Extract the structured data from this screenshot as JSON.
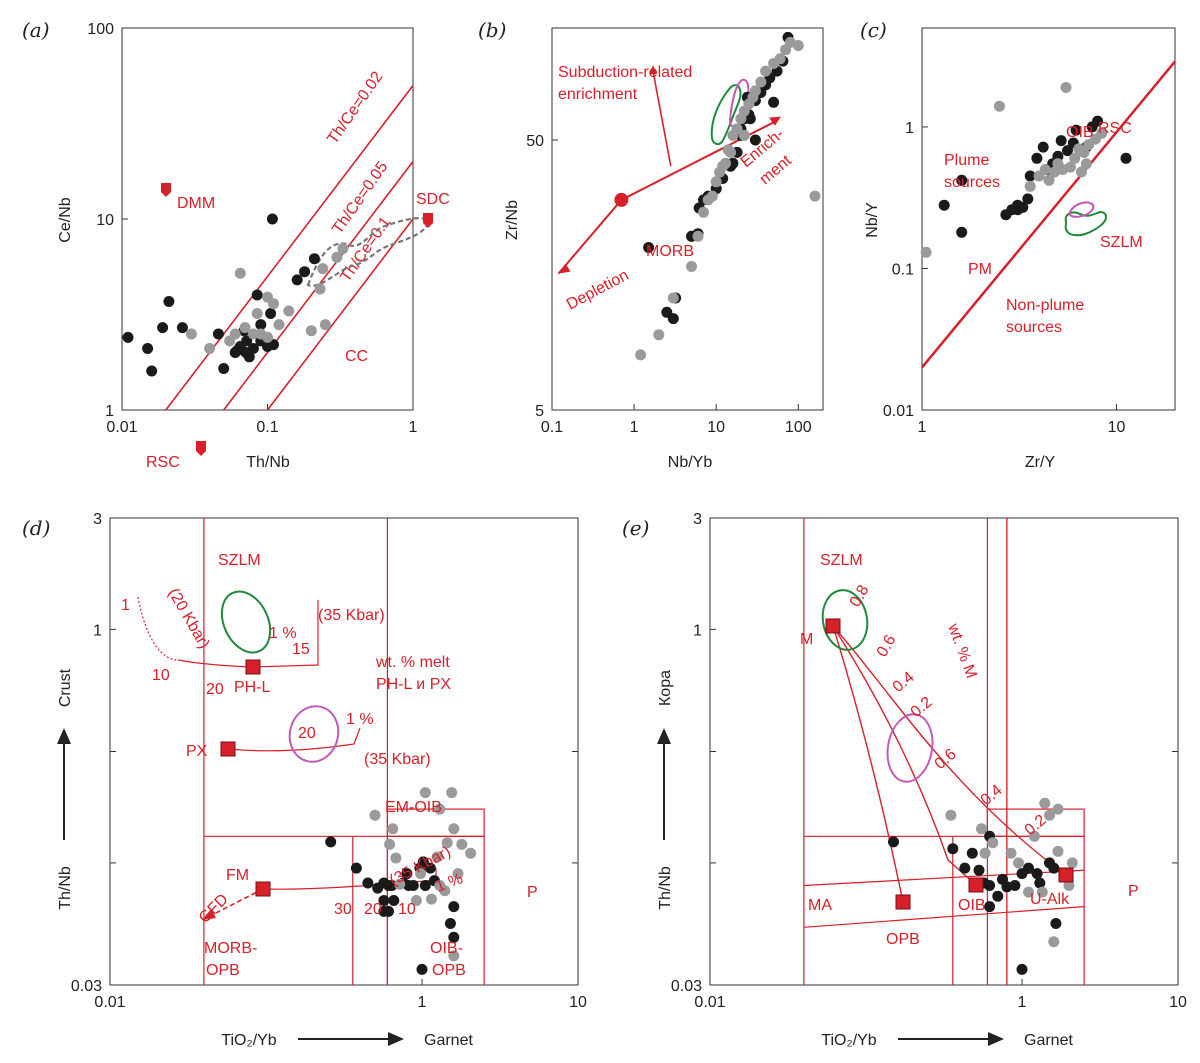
{
  "colors": {
    "red": "#d6202a",
    "black_dot": "#1a1a1a",
    "grey_dot": "#9a9a9a",
    "green": "#1f8a3a",
    "magenta": "#c25ab8",
    "dash_grey": "#777777"
  },
  "chart_data": [
    {
      "id": "a",
      "type": "scatter",
      "panel_label": "(a)",
      "xlabel": "Th/Nb",
      "ylabel": "Ce/Nb",
      "xscale": "log",
      "yscale": "log",
      "xlim": [
        0.01,
        1
      ],
      "ylim": [
        1,
        100
      ],
      "xticks": [
        "0.01",
        "0.1",
        "1"
      ],
      "yticks": [
        "1",
        "10",
        "100"
      ],
      "series": [
        {
          "color": "black",
          "points": [
            [
              0.011,
              2.4
            ],
            [
              0.015,
              2.1
            ],
            [
              0.016,
              1.6
            ],
            [
              0.019,
              2.7
            ],
            [
              0.021,
              3.7
            ],
            [
              0.026,
              2.7
            ],
            [
              0.046,
              2.5
            ],
            [
              0.05,
              1.65
            ],
            [
              0.06,
              2.0
            ],
            [
              0.065,
              2.15
            ],
            [
              0.069,
              2.6
            ],
            [
              0.072,
              2.3
            ],
            [
              0.075,
              1.9
            ],
            [
              0.08,
              2.1
            ],
            [
              0.085,
              4.0
            ],
            [
              0.09,
              2.8
            ],
            [
              0.1,
              2.15
            ],
            [
              0.105,
              3.2
            ],
            [
              0.11,
              2.2
            ],
            [
              0.108,
              10
            ],
            [
              0.16,
              4.8
            ],
            [
              0.18,
              5.3
            ],
            [
              0.21,
              6.2
            ],
            [
              0.062,
              2.05
            ],
            [
              0.071,
              2.0
            ],
            [
              0.09,
              2.3
            ]
          ]
        },
        {
          "color": "grey",
          "points": [
            [
              0.03,
              2.5
            ],
            [
              0.04,
              2.1
            ],
            [
              0.055,
              2.3
            ],
            [
              0.06,
              2.5
            ],
            [
              0.07,
              2.7
            ],
            [
              0.08,
              2.5
            ],
            [
              0.085,
              3.2
            ],
            [
              0.09,
              2.5
            ],
            [
              0.1,
              2.4
            ],
            [
              0.11,
              3.6
            ],
            [
              0.12,
              2.8
            ],
            [
              0.14,
              3.3
            ],
            [
              0.2,
              2.6
            ],
            [
              0.25,
              2.8
            ],
            [
              0.24,
              5.5
            ],
            [
              0.3,
              6.3
            ],
            [
              0.33,
              7.0
            ],
            [
              0.065,
              5.2
            ],
            [
              0.1,
              3.9
            ],
            [
              0.23,
              4.3
            ]
          ]
        }
      ],
      "lines": [
        {
          "label": "Th/Ce=0.02"
        },
        {
          "label": "Th/Ce=0.05"
        },
        {
          "label": "Th/Ce=0.1"
        }
      ],
      "annotations": [
        "DMM",
        "SDC",
        "RSC",
        "CC"
      ]
    },
    {
      "id": "b",
      "type": "scatter",
      "panel_label": "(b)",
      "xlabel": "Nb/Yb",
      "ylabel": "Zr/Nb",
      "xscale": "log",
      "yscale": "log",
      "xlim": [
        0.1,
        200
      ],
      "ylim": [
        5,
        130
      ],
      "xticks": [
        "0.1",
        "1",
        "10",
        "100"
      ],
      "yticks": [
        "5",
        "50"
      ],
      "series": [
        {
          "color": "black",
          "points": [
            [
              1.5,
              20
            ],
            [
              2.5,
              11.5
            ],
            [
              3,
              10.9
            ],
            [
              3.2,
              13
            ],
            [
              5,
              22
            ],
            [
              6,
              22.5
            ],
            [
              6.2,
              28
            ],
            [
              7,
              30
            ],
            [
              8,
              31
            ],
            [
              10,
              33
            ],
            [
              12,
              36
            ],
            [
              15,
              40
            ],
            [
              16,
              41
            ],
            [
              18,
              45
            ],
            [
              20,
              52
            ],
            [
              22,
              60
            ],
            [
              25,
              62
            ],
            [
              30,
              70
            ],
            [
              35,
              75
            ],
            [
              40,
              80
            ],
            [
              45,
              85
            ],
            [
              55,
              90
            ],
            [
              65,
              98
            ],
            [
              75,
              120
            ],
            [
              50,
              69
            ],
            [
              30,
              50
            ],
            [
              26,
              60
            ],
            [
              20,
              55
            ],
            [
              24,
              72
            ]
          ]
        },
        {
          "color": "grey",
          "points": [
            [
              1.2,
              8
            ],
            [
              2,
              9.5
            ],
            [
              3,
              13
            ],
            [
              5,
              17
            ],
            [
              6,
              22
            ],
            [
              7,
              27
            ],
            [
              8,
              30
            ],
            [
              9,
              31
            ],
            [
              10,
              35
            ],
            [
              11,
              38
            ],
            [
              13,
              41
            ],
            [
              15,
              45
            ],
            [
              16,
              52
            ],
            [
              18,
              55
            ],
            [
              20,
              60
            ],
            [
              22,
              64
            ],
            [
              25,
              68
            ],
            [
              28,
              72
            ],
            [
              30,
              76
            ],
            [
              35,
              82
            ],
            [
              40,
              90
            ],
            [
              50,
              96
            ],
            [
              60,
              100
            ],
            [
              70,
              108
            ],
            [
              80,
              115
            ],
            [
              100,
              112
            ],
            [
              160,
              31
            ],
            [
              22,
              52
            ],
            [
              14,
              46
            ],
            [
              12,
              40
            ]
          ]
        }
      ],
      "annotations": [
        "Subduction-related enrichment",
        "Enrich-ment",
        "Depletion",
        "MORB"
      ]
    },
    {
      "id": "c",
      "type": "scatter",
      "panel_label": "(c)",
      "xlabel": "Zr/Y",
      "ylabel": "Nb/Y",
      "xscale": "log",
      "yscale": "log",
      "xlim": [
        1,
        20
      ],
      "ylim": [
        0.01,
        5
      ],
      "xticks": [
        "1",
        "10"
      ],
      "yticks": [
        "0.01",
        "0.1",
        "1"
      ],
      "series": [
        {
          "color": "black",
          "points": [
            [
              1.3,
              0.28
            ],
            [
              1.6,
              0.18
            ],
            [
              1.6,
              0.42
            ],
            [
              2.7,
              0.24
            ],
            [
              2.9,
              0.26
            ],
            [
              3.1,
              0.28
            ],
            [
              3.3,
              0.27
            ],
            [
              3.5,
              0.31
            ],
            [
              3.6,
              0.45
            ],
            [
              3.9,
              0.6
            ],
            [
              4.2,
              0.72
            ],
            [
              4.4,
              0.5
            ],
            [
              4.7,
              0.55
            ],
            [
              5,
              0.62
            ],
            [
              5.2,
              0.8
            ],
            [
              5.6,
              0.68
            ],
            [
              6,
              0.77
            ],
            [
              6.2,
              0.95
            ],
            [
              7,
              0.72
            ],
            [
              7.5,
              1.0
            ],
            [
              8,
              1.1
            ],
            [
              11.2,
              0.6
            ],
            [
              3.1,
              0.26
            ]
          ]
        },
        {
          "color": "grey",
          "points": [
            [
              1.05,
              0.13
            ],
            [
              2.5,
              1.4
            ],
            [
              3.6,
              0.38
            ],
            [
              4,
              0.45
            ],
            [
              4.3,
              0.5
            ],
            [
              4.5,
              0.42
            ],
            [
              4.8,
              0.48
            ],
            [
              5.5,
              1.9
            ],
            [
              5,
              0.55
            ],
            [
              5.3,
              0.5
            ],
            [
              5.8,
              0.52
            ],
            [
              6.1,
              0.6
            ],
            [
              6.4,
              0.7
            ],
            [
              6.8,
              0.66
            ],
            [
              7.2,
              0.75
            ],
            [
              7.8,
              0.82
            ],
            [
              8.4,
              0.9
            ],
            [
              6.6,
              0.48
            ],
            [
              7,
              0.55
            ]
          ]
        }
      ],
      "annotations": [
        "RSC",
        "OIB",
        "Plume sources",
        "PM",
        "Non-plume sources",
        "SZLM"
      ]
    },
    {
      "id": "d",
      "type": "scatter",
      "panel_label": "(d)",
      "xlabel_left": "TiO₂/Yb",
      "xlabel_right": "Garnet",
      "ylabel_bottom": "Th/Nb",
      "ylabel_top": "Crust",
      "xscale": "log",
      "yscale": "log",
      "xlim": [
        0.01,
        10
      ],
      "ylim": [
        0.03,
        3
      ],
      "xticks": [
        "0.01",
        "1",
        "10"
      ],
      "yticks": [
        "0.03",
        "1",
        "3"
      ],
      "series": [
        {
          "color": "black",
          "points": [
            [
              0.26,
              0.123
            ],
            [
              0.38,
              0.095
            ],
            [
              0.45,
              0.082
            ],
            [
              0.52,
              0.078
            ],
            [
              0.57,
              0.082
            ],
            [
              0.61,
              0.08
            ],
            [
              0.64,
              0.08
            ],
            [
              0.57,
              0.069
            ],
            [
              0.66,
              0.069
            ],
            [
              0.61,
              0.062
            ],
            [
              0.57,
              0.062
            ],
            [
              0.76,
              0.082
            ],
            [
              0.82,
              0.08
            ],
            [
              0.88,
              0.08
            ],
            [
              0.97,
              0.095
            ],
            [
              1.05,
              0.08
            ],
            [
              1.2,
              0.084
            ],
            [
              1.13,
              0.095
            ],
            [
              1.02,
              0.101
            ],
            [
              1.6,
              0.065
            ],
            [
              1.52,
              0.055
            ],
            [
              1.6,
              0.048
            ],
            [
              1.0,
              0.035
            ],
            [
              0.8,
              0.09
            ]
          ]
        },
        {
          "color": "grey",
          "points": [
            [
              0.5,
              0.16
            ],
            [
              0.65,
              0.14
            ],
            [
              0.62,
              0.12
            ],
            [
              0.68,
              0.105
            ],
            [
              0.92,
              0.069
            ],
            [
              0.98,
              0.09
            ],
            [
              1.25,
              0.106
            ],
            [
              1.45,
              0.122
            ],
            [
              1.6,
              0.14
            ],
            [
              1.05,
              0.2
            ],
            [
              1.3,
              0.17
            ],
            [
              1.55,
              0.2
            ],
            [
              1.8,
              0.12
            ],
            [
              2.05,
              0.11
            ],
            [
              1.7,
              0.09
            ],
            [
              0.72,
              0.081
            ],
            [
              1.3,
              0.08
            ],
            [
              1.15,
              0.07
            ],
            [
              1.6,
              0.04
            ],
            [
              1.4,
              0.076
            ]
          ]
        }
      ],
      "annotations": [
        "SZLM",
        "wt. % melt PH-L и PX",
        "EM-OIB",
        "P",
        "PX",
        "PH-L",
        "FM",
        "GFD",
        "MORB-OPB",
        "OIB-OPB",
        "(20 Kbar)",
        "(35 Kbar)",
        "1 %",
        "15",
        "10",
        "20",
        "1",
        "30"
      ]
    },
    {
      "id": "e",
      "type": "scatter",
      "panel_label": "(e)",
      "xlabel_left": "TiO₂/Yb",
      "xlabel_right": "Garnet",
      "ylabel_bottom": "Th/Nb",
      "ylabel_top": "Кора",
      "xscale": "log",
      "yscale": "log",
      "xlim": [
        0.01,
        10
      ],
      "ylim": [
        0.03,
        3
      ],
      "xticks": [
        "0.01",
        "1",
        "10"
      ],
      "yticks": [
        "0.03",
        "1",
        "3"
      ],
      "series": [
        {
          "color": "black",
          "points": [
            [
              0.15,
              0.123
            ],
            [
              0.36,
              0.115
            ],
            [
              0.48,
              0.11
            ],
            [
              0.62,
              0.13
            ],
            [
              0.43,
              0.095
            ],
            [
              0.53,
              0.093
            ],
            [
              0.57,
              0.082
            ],
            [
              0.62,
              0.08
            ],
            [
              0.75,
              0.085
            ],
            [
              0.8,
              0.079
            ],
            [
              0.7,
              0.072
            ],
            [
              0.9,
              0.08
            ],
            [
              1.0,
              0.09
            ],
            [
              1.1,
              0.095
            ],
            [
              1.25,
              0.09
            ],
            [
              1.3,
              0.082
            ],
            [
              1.5,
              0.1
            ],
            [
              1.6,
              0.095
            ],
            [
              1.65,
              0.055
            ],
            [
              1.0,
              0.035
            ],
            [
              0.62,
              0.065
            ]
          ]
        },
        {
          "color": "grey",
          "points": [
            [
              0.35,
              0.16
            ],
            [
              0.55,
              0.14
            ],
            [
              0.65,
              0.122
            ],
            [
              0.58,
              0.11
            ],
            [
              0.85,
              0.11
            ],
            [
              0.95,
              0.1
            ],
            [
              1.2,
              0.13
            ],
            [
              1.5,
              0.16
            ],
            [
              1.7,
              0.17
            ],
            [
              1.4,
              0.18
            ],
            [
              1.7,
              0.112
            ],
            [
              2.1,
              0.1
            ],
            [
              1.35,
              0.075
            ],
            [
              1.1,
              0.075
            ],
            [
              1.6,
              0.046
            ],
            [
              2.0,
              0.08
            ]
          ]
        }
      ],
      "annotations": [
        "SZLM",
        "M",
        "wt. % M",
        "MA",
        "OPB",
        "OIB",
        "U-Alk",
        "P",
        "0.8",
        "0.6",
        "0.4",
        "0.2"
      ]
    }
  ]
}
